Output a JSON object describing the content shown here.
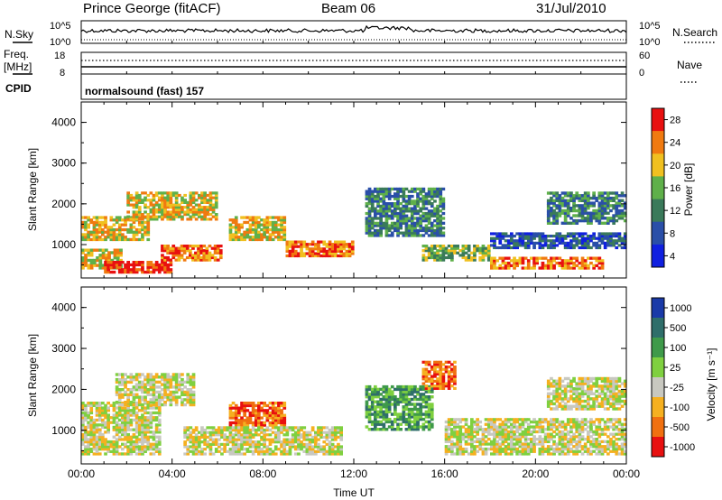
{
  "header": {
    "station": "Prince George (fitACF)",
    "beam": "Beam 06",
    "date": "31/Jul/2010"
  },
  "strip1": {
    "left_label": "N.Sky",
    "right_label": "N.Search",
    "left_ticks": [
      "10^5",
      "10^0"
    ],
    "right_ticks": [
      "10^5",
      "10^0"
    ]
  },
  "strip2": {
    "left_label_1": "Freq.",
    "left_label_2": "[MHz]",
    "right_label": "Nave",
    "left_ticks": [
      "18",
      "8"
    ],
    "right_ticks": [
      "60",
      "0"
    ]
  },
  "cpid": {
    "label": "CPID",
    "text": "normalsound (fast) 157"
  },
  "chart_data": [
    {
      "type": "heatmap",
      "panel": "power",
      "ylabel": "Slant Range [km]",
      "xlabel": "",
      "x_range": [
        "00:00",
        "24:00"
      ],
      "ylim": [
        180,
        4500
      ],
      "y_ticks": [
        1000,
        2000,
        3000,
        4000
      ],
      "colorbar": {
        "label": "Power [dB]",
        "ticks": [
          4,
          8,
          12,
          16,
          20,
          24,
          28
        ],
        "colors": [
          "#1020e0",
          "#2a4fa8",
          "#3a7a5a",
          "#5fb04a",
          "#f0c020",
          "#f07a10",
          "#e81010"
        ]
      },
      "regions": [
        {
          "t0": 0.0,
          "t1": 1.8,
          "r0": 400,
          "r1": 900,
          "level": 4
        },
        {
          "t0": 0.0,
          "t1": 3.0,
          "r0": 1100,
          "r1": 1700,
          "level": 4
        },
        {
          "t0": 1.0,
          "t1": 4.0,
          "r0": 300,
          "r1": 600,
          "level": 6
        },
        {
          "t0": 2.0,
          "t1": 6.0,
          "r0": 1600,
          "r1": 2300,
          "level": 4
        },
        {
          "t0": 3.5,
          "t1": 6.2,
          "r0": 600,
          "r1": 1000,
          "level": 5
        },
        {
          "t0": 6.5,
          "t1": 9.0,
          "r0": 1100,
          "r1": 1700,
          "level": 4
        },
        {
          "t0": 9.0,
          "t1": 12.0,
          "r0": 700,
          "r1": 1100,
          "level": 5
        },
        {
          "t0": 12.5,
          "t1": 16.0,
          "r0": 1200,
          "r1": 2400,
          "level": 2
        },
        {
          "t0": 15.0,
          "t1": 18.0,
          "r0": 600,
          "r1": 1000,
          "level": 3
        },
        {
          "t0": 18.0,
          "t1": 23.0,
          "r0": 400,
          "r1": 700,
          "level": 5
        },
        {
          "t0": 18.0,
          "t1": 24.0,
          "r0": 900,
          "r1": 1300,
          "level": 1
        },
        {
          "t0": 20.5,
          "t1": 24.0,
          "r0": 1500,
          "r1": 2300,
          "level": 2
        }
      ]
    },
    {
      "type": "heatmap",
      "panel": "velocity",
      "ylabel": "Slant Range [km]",
      "xlabel": "Time UT",
      "x_range": [
        "00:00",
        "24:00"
      ],
      "x_ticks": [
        "00:00",
        "04:00",
        "08:00",
        "12:00",
        "16:00",
        "20:00",
        "00:00"
      ],
      "ylim": [
        180,
        4500
      ],
      "y_ticks": [
        1000,
        2000,
        3000,
        4000
      ],
      "colorbar": {
        "label": "Velocity [m s⁻¹]",
        "ticks": [
          "1000",
          "500",
          "100",
          "25",
          "-25",
          "-100",
          "-500",
          "-1000"
        ],
        "colors": [
          "#1a3aa8",
          "#2f6e6a",
          "#3f9a4a",
          "#7fd040",
          "#c8c8c0",
          "#f5b020",
          "#f07010",
          "#e81010"
        ]
      },
      "regions": [
        {
          "t0": 0.0,
          "t1": 3.5,
          "r0": 400,
          "r1": 1700,
          "level": 4
        },
        {
          "t0": 1.5,
          "t1": 5.0,
          "r0": 1600,
          "r1": 2400,
          "level": 4
        },
        {
          "t0": 6.5,
          "t1": 9.0,
          "r0": 1100,
          "r1": 1700,
          "level": 6
        },
        {
          "t0": 4.5,
          "t1": 11.5,
          "r0": 400,
          "r1": 1100,
          "level": 4
        },
        {
          "t0": 12.5,
          "t1": 15.5,
          "r0": 1000,
          "r1": 2100,
          "level": 2
        },
        {
          "t0": 15.0,
          "t1": 16.5,
          "r0": 2000,
          "r1": 2700,
          "level": 6
        },
        {
          "t0": 16.0,
          "t1": 24.0,
          "r0": 400,
          "r1": 1300,
          "level": 4
        },
        {
          "t0": 20.5,
          "t1": 24.0,
          "r0": 1500,
          "r1": 2300,
          "level": 4
        }
      ]
    }
  ],
  "colors": {
    "background": "#ffffff",
    "axes": "#000000"
  }
}
